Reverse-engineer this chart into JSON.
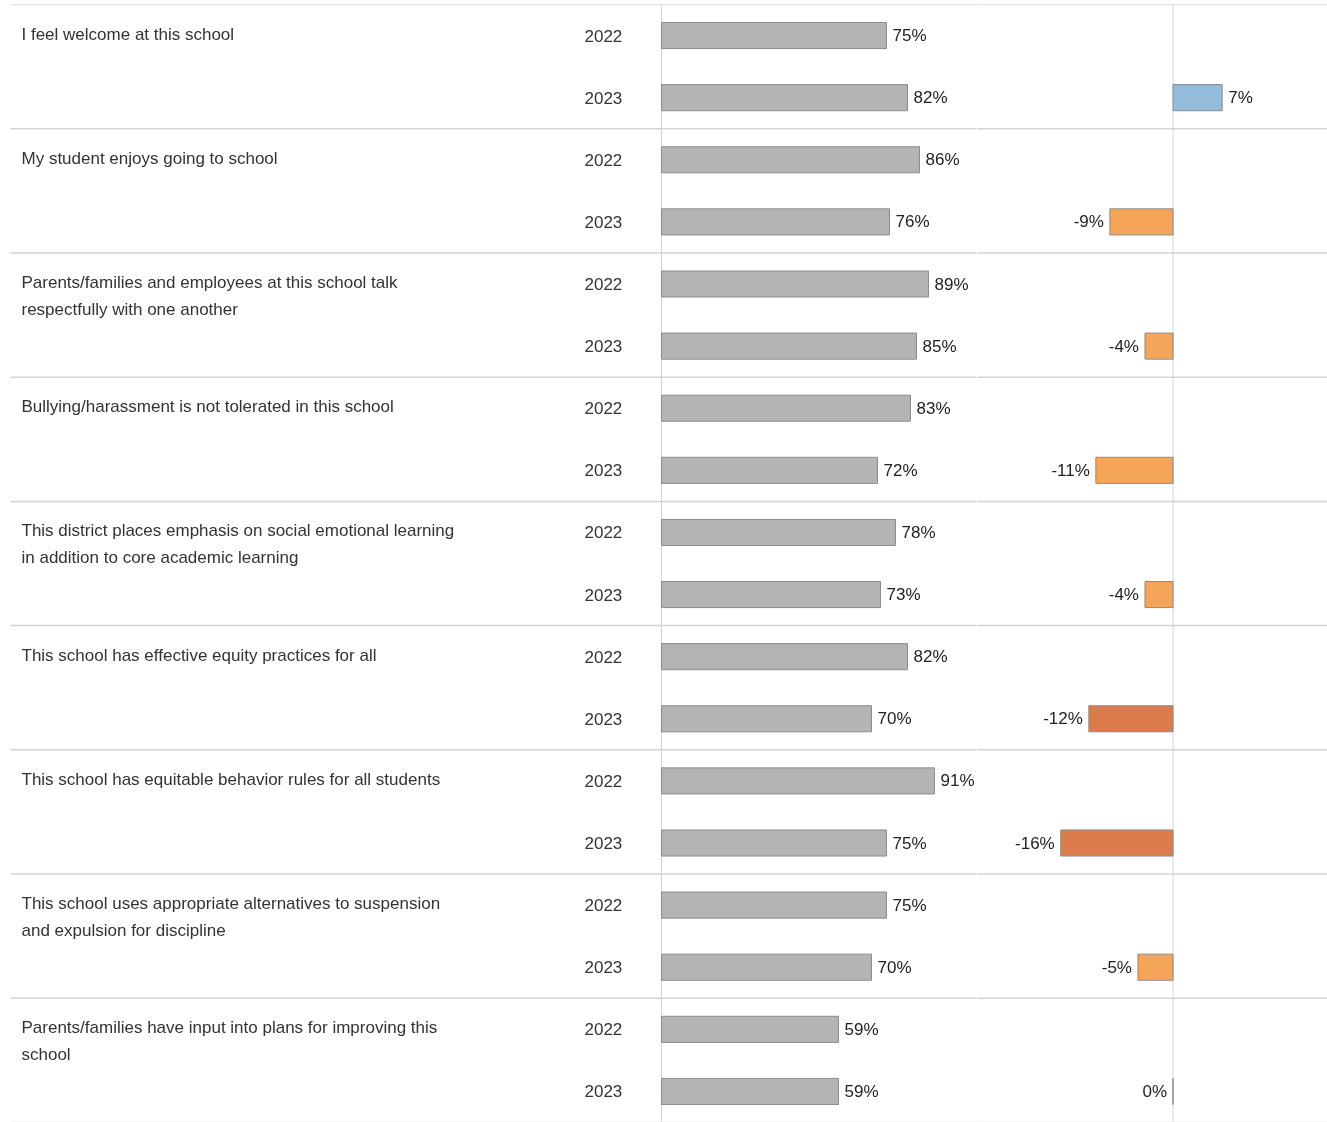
{
  "chart_data": [
    {
      "type": "bar",
      "orientation": "horizontal",
      "categories": [
        "I feel welcome at this school",
        "My student enjoys going to school",
        "Parents/families and employees at this school talk respectfully with one another",
        "Bullying/harassment is not tolerated in this school",
        "This district places emphasis on social emotional learning in addition to core academic learning",
        "This school has effective equity practices for all",
        "This school has equitable behavior rules for all students",
        "This school uses appropriate alternatives to suspension and expulsion for discipline",
        "Parents/families have input into plans for improving this school"
      ],
      "xlim": [
        0,
        105
      ],
      "series": [
        {
          "name": "2022",
          "color": "#b4b4b4",
          "values": [
            75,
            86,
            89,
            83,
            78,
            82,
            91,
            75,
            59
          ],
          "value_labels": [
            "75%",
            "86%",
            "89%",
            "83%",
            "78%",
            "82%",
            "91%",
            "75%",
            "59%"
          ]
        },
        {
          "name": "2023",
          "color": "#b4b4b4",
          "values": [
            82,
            76,
            85,
            72,
            73,
            70,
            75,
            70,
            59
          ],
          "value_labels": [
            "82%",
            "76%",
            "85%",
            "72%",
            "73%",
            "70%",
            "75%",
            "70%",
            "59%"
          ]
        }
      ]
    },
    {
      "type": "bar",
      "orientation": "horizontal",
      "tick_labels": false,
      "categories": [
        "I feel welcome at this school",
        "My student enjoys going to school",
        "Parents/families and employees at this school talk respectfully with one another",
        "Bullying/harassment is not tolerated in this school",
        "This district places emphasis on social emotional learning in addition to core academic learning",
        "This school has effective equity practices for all",
        "This school has equitable behavior rules for all students",
        "This school uses appropriate alternatives to suspension and expulsion for discipline",
        "Parents/families have input into plans for improving this school"
      ],
      "xlim": [
        -28,
        22
      ],
      "series": [
        {
          "colors": [
            "#93bcdc",
            "#f5a55a",
            "#f5a55a",
            "#f5a55a",
            "#f5a55a",
            "#dc7b4c",
            "#dc7b4c",
            "#f5a55a",
            "#8c8c8c"
          ],
          "values": [
            7,
            -9,
            -4,
            -11,
            -4,
            -12,
            -16,
            -5,
            0
          ],
          "value_labels": [
            "7%",
            "-9%",
            "-4%",
            "-11%",
            "-4%",
            "-12%",
            "-16%",
            "-5%",
            "0%"
          ]
        }
      ]
    }
  ]
}
